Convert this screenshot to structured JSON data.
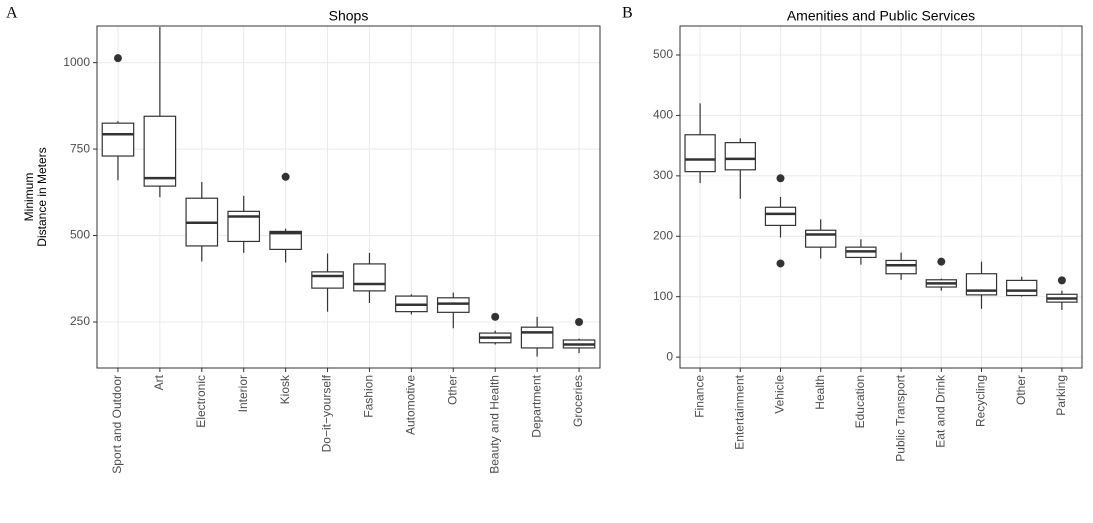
{
  "chart_data": [
    {
      "type": "box",
      "panel_label": "A",
      "title": "Shops",
      "y_label": [
        "Minimum",
        "Distance in Meters"
      ],
      "categories": [
        "Sport and Outdoor",
        "Art",
        "Electronic",
        "Interior",
        "Kiosk",
        "Do−it−yourself",
        "Fashion",
        "Automotive",
        "Other",
        "Beauty and Health",
        "Department",
        "Groceries"
      ],
      "whisker_low": [
        660,
        611,
        425,
        450,
        422,
        280,
        305,
        272,
        232,
        185,
        150,
        160
      ],
      "q1": [
        730,
        643,
        470,
        483,
        460,
        348,
        340,
        280,
        278,
        190,
        175,
        175
      ],
      "median": [
        793,
        666,
        537,
        555,
        507,
        383,
        360,
        300,
        303,
        205,
        220,
        185
      ],
      "q3": [
        825,
        845,
        608,
        570,
        512,
        395,
        418,
        325,
        320,
        218,
        235,
        198
      ],
      "whisker_high": [
        831,
        1103,
        655,
        615,
        520,
        448,
        450,
        330,
        335,
        225,
        265,
        202
      ],
      "outliers": [
        [
          1013
        ],
        [],
        [],
        [],
        [
          670
        ],
        [],
        [],
        [],
        [],
        [
          265
        ],
        [],
        [
          250
        ]
      ],
      "ylim": [
        117,
        1106
      ],
      "yticks": [
        250,
        500,
        750,
        1000
      ],
      "grid": true,
      "box_color": "#333333",
      "fill": "#ffffff"
    },
    {
      "type": "box",
      "panel_label": "B",
      "title": "Amenities and Public Services",
      "categories": [
        "Finance",
        "Entertainment",
        "Vehicle",
        "Health",
        "Education",
        "Public Transport",
        "Eat and Drink",
        "Recycling",
        "Other",
        "Parking"
      ],
      "whisker_low": [
        288,
        262,
        198,
        163,
        153,
        128,
        110,
        80,
        100,
        78
      ],
      "q1": [
        307,
        310,
        218,
        182,
        165,
        138,
        116,
        103,
        102,
        91
      ],
      "median": [
        327,
        328,
        237,
        203,
        175,
        152,
        122,
        110,
        110,
        97
      ],
      "q3": [
        368,
        355,
        248,
        210,
        182,
        160,
        128,
        138,
        127,
        104
      ],
      "whisker_high": [
        420,
        362,
        265,
        228,
        195,
        173,
        130,
        158,
        133,
        110
      ],
      "outliers": [
        [],
        [],
        [
          296,
          155
        ],
        [],
        [],
        [],
        [
          158
        ],
        [],
        [],
        [
          127
        ]
      ],
      "ylim": [
        -18,
        548
      ],
      "yticks": [
        0,
        100,
        200,
        300,
        400,
        500
      ],
      "grid": true,
      "box_color": "#333333",
      "fill": "#ffffff"
    }
  ]
}
